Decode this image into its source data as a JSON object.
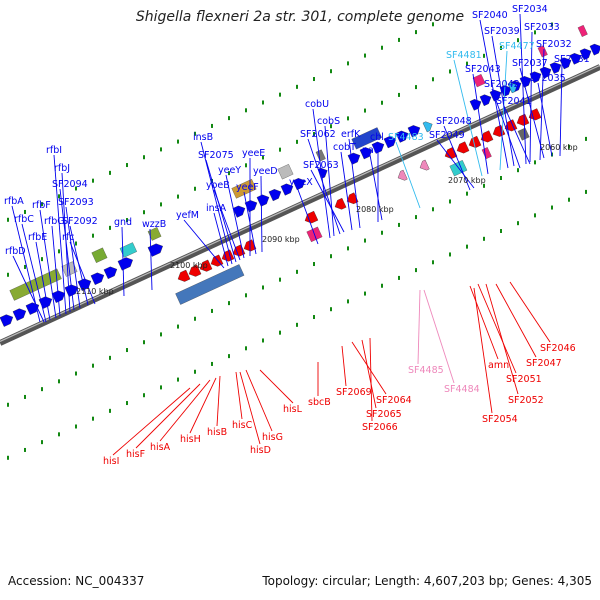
{
  "title": "Shigella flexneri 2a str. 301, complete genome",
  "footer": {
    "accession_label": "Accession:",
    "accession": "NC_004337",
    "topology_label": "Topology:",
    "topology": "circular",
    "length_label": "Length:",
    "length": "4,607,203 bp",
    "genes_label": "Genes:",
    "genes": "4,305"
  },
  "colors": {
    "forward_gene": "#0000ee",
    "reverse_gene": "#ee0000",
    "pseudo_forward": "#33bbee",
    "pseudo_reverse": "#ee88bb",
    "backbone": "#777777",
    "tick": "#118811"
  },
  "position_markers": [
    "2110 kbp",
    "2100 kbp",
    "2090 kbp",
    "2080 kbp",
    "2070 kbp",
    "2060 kbp"
  ],
  "top_labels": [
    "rfbA",
    "rfbD",
    "rfbC",
    "rfbE",
    "rfbF",
    "rfbG",
    "rfbI",
    "rfbJ",
    "SF2094",
    "SF2093",
    "SF2092",
    "rfc",
    "gnd",
    "wzzB",
    "yefM",
    "insA",
    "insB",
    "SF2075",
    "yoeB",
    "yeeY",
    "yeeE",
    "yeeF",
    "yeeD",
    "yeeX",
    "cobU",
    "cobS",
    "SF2062",
    "SF2063",
    "cobT",
    "erfK",
    "cbl",
    "nac",
    "SF4483",
    "SF2048",
    "SF2049",
    "SF4481",
    "SF2043",
    "SF4477",
    "SF2040",
    "SF2039",
    "SF2034",
    "SF2033",
    "SF2032",
    "SF2037",
    "SF2031",
    "SF2042",
    "SF2035",
    "SF2041"
  ],
  "bottom_labels": [
    "hisI",
    "hisF",
    "hisA",
    "hisH",
    "hisB",
    "hisC",
    "hisG",
    "hisD",
    "hisL",
    "sbcB",
    "SF2069",
    "SF2064",
    "SF2065",
    "SF2066",
    "SF4485",
    "SF4484",
    "amn",
    "SF2051",
    "SF2047",
    "SF2046",
    "SF2052",
    "SF2054"
  ]
}
